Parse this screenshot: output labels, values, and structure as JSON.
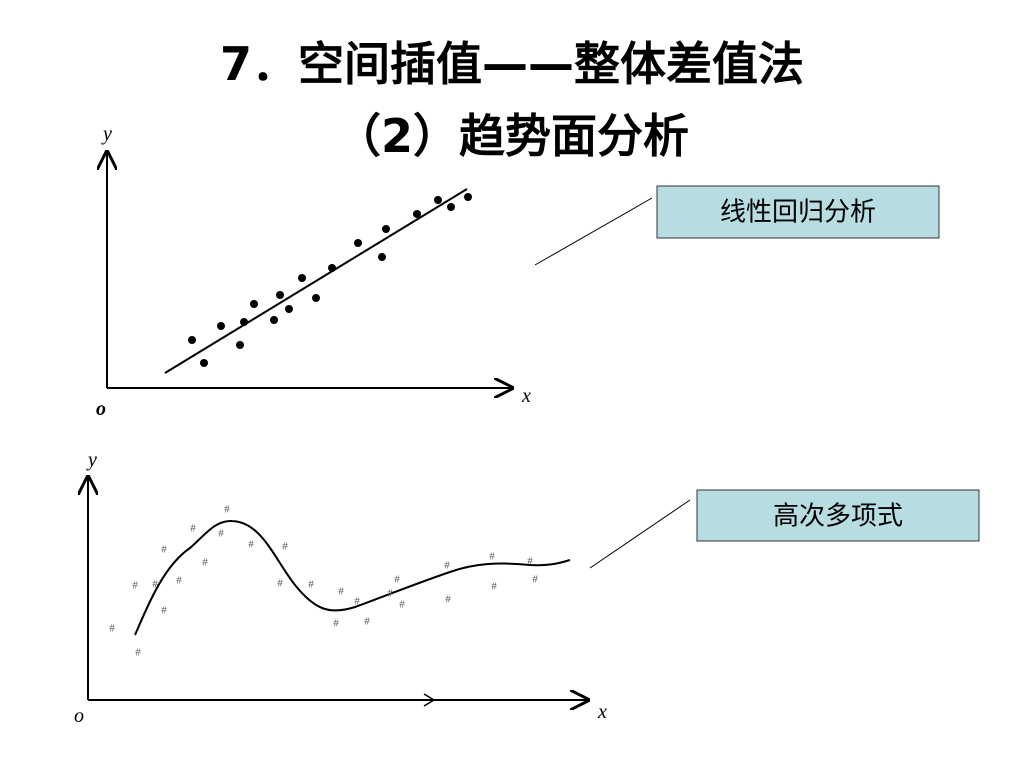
{
  "title": {
    "line1": "7．空间插值——整体差值法",
    "line2": "（2）趋势面分析"
  },
  "diagram1": {
    "y_label": "y",
    "x_label": "x",
    "origin_label": "o",
    "callout": "线性回归分析"
  },
  "diagram2": {
    "y_label": "y",
    "x_label": "x",
    "origin_label": "o",
    "callout": "高次多项式",
    "point_marker": "#"
  }
}
